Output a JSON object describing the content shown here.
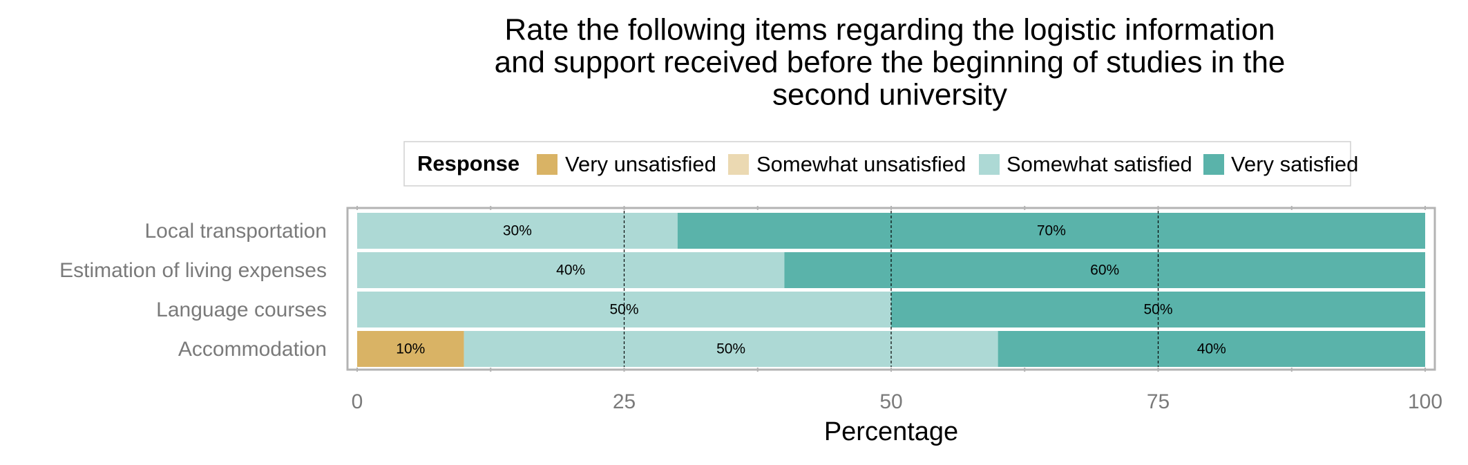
{
  "chart_data": {
    "type": "bar",
    "orientation": "horizontal",
    "stacked": true,
    "title_lines": [
      "Rate the following items regarding the logistic information",
      "and support received before the beginning of studies in the",
      "second university"
    ],
    "xlabel": "Percentage",
    "ylabel": "",
    "xlim": [
      0,
      100
    ],
    "x_ticks": [
      "0",
      "25",
      "50",
      "75",
      "100"
    ],
    "grid": "dashed vertical lines at major ticks",
    "legend_position": "top",
    "legend_title": "Response",
    "categories": [
      "Local transportation",
      "Estimation of living expenses",
      "Language courses",
      "Accommodation"
    ],
    "series": [
      {
        "name": "Very unsatisfied",
        "color": "#d9b365",
        "values": [
          0,
          0,
          0,
          10
        ],
        "labels": [
          "",
          "",
          "",
          "10%"
        ]
      },
      {
        "name": "Somewhat unsatisfied",
        "color": "#ebd9b2",
        "values": [
          0,
          0,
          0,
          0
        ],
        "labels": [
          "",
          "",
          "",
          ""
        ]
      },
      {
        "name": "Somewhat satisfied",
        "color": "#add9d5",
        "values": [
          30,
          40,
          50,
          50
        ],
        "labels": [
          "30%",
          "40%",
          "50%",
          "50%"
        ]
      },
      {
        "name": "Very satisfied",
        "color": "#5ab3aa",
        "values": [
          70,
          60,
          50,
          40
        ],
        "labels": [
          "70%",
          "60%",
          "50%",
          "40%"
        ]
      }
    ]
  }
}
